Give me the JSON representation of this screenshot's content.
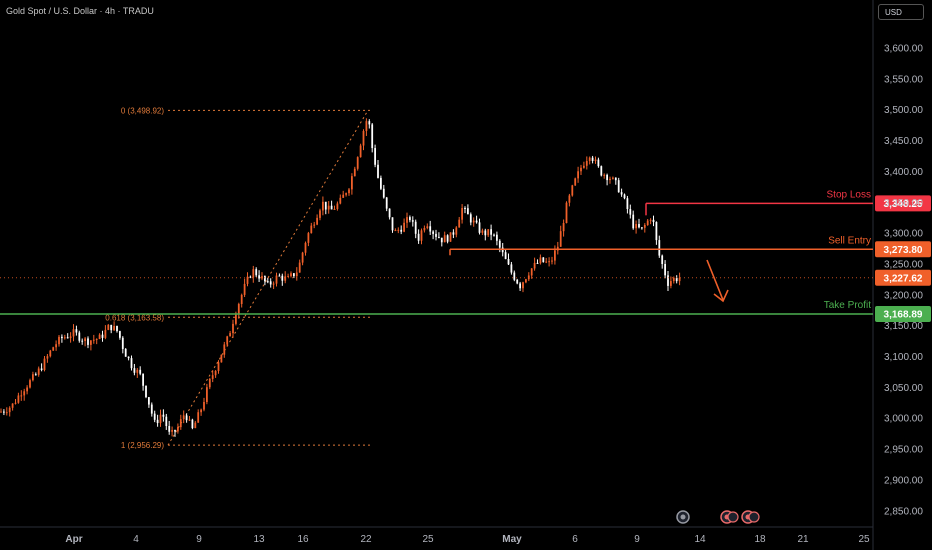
{
  "header": {
    "symbol_title": "Gold Spot / U.S. Dollar · 4h · TRADU",
    "currency": "USD"
  },
  "chart_data": {
    "type": "candlestick",
    "title": "Gold Spot / U.S. Dollar · 4h · TRADU",
    "y_ticks": [
      "3,600.00",
      "3,550.00",
      "3,500.00",
      "3,450.00",
      "3,400.00",
      "3,350.00",
      "3,300.00",
      "3,250.00",
      "3,200.00",
      "3,150.00",
      "3,100.00",
      "3,050.00",
      "3,000.00",
      "2,950.00",
      "2,900.00",
      "2,850.00"
    ],
    "y_tick_values": [
      3600,
      3550,
      3500,
      3450,
      3400,
      3350,
      3300,
      3250,
      3200,
      3150,
      3100,
      3050,
      3000,
      2950,
      2900,
      2850
    ],
    "ylim": [
      2830,
      3650
    ],
    "x_ticks": [
      "Apr",
      "4",
      "9",
      "13",
      "16",
      "22",
      "25",
      "May",
      "6",
      "9",
      "14",
      "18",
      "21",
      "25"
    ],
    "x_tick_positions": [
      74,
      136,
      199,
      259,
      303,
      366,
      428,
      512,
      575,
      637,
      700,
      760,
      803,
      864
    ],
    "price_anchors": [
      [
        0,
        3010
      ],
      [
        12,
        3020
      ],
      [
        22,
        3045
      ],
      [
        36,
        3070
      ],
      [
        46,
        3095
      ],
      [
        54,
        3118
      ],
      [
        62,
        3130
      ],
      [
        74,
        3138
      ],
      [
        86,
        3125
      ],
      [
        100,
        3130
      ],
      [
        110,
        3150
      ],
      [
        118,
        3140
      ],
      [
        124,
        3110
      ],
      [
        132,
        3085
      ],
      [
        140,
        3070
      ],
      [
        148,
        3030
      ],
      [
        155,
        2990
      ],
      [
        162,
        3010
      ],
      [
        170,
        2970
      ],
      [
        178,
        2985
      ],
      [
        185,
        3010
      ],
      [
        192,
        2980
      ],
      [
        200,
        3010
      ],
      [
        210,
        3060
      ],
      [
        220,
        3100
      ],
      [
        228,
        3130
      ],
      [
        236,
        3175
      ],
      [
        244,
        3210
      ],
      [
        252,
        3240
      ],
      [
        260,
        3230
      ],
      [
        268,
        3215
      ],
      [
        278,
        3230
      ],
      [
        288,
        3225
      ],
      [
        298,
        3240
      ],
      [
        306,
        3290
      ],
      [
        314,
        3320
      ],
      [
        322,
        3350
      ],
      [
        330,
        3335
      ],
      [
        340,
        3350
      ],
      [
        350,
        3380
      ],
      [
        358,
        3430
      ],
      [
        364,
        3470
      ],
      [
        368,
        3490
      ],
      [
        372,
        3440
      ],
      [
        378,
        3390
      ],
      [
        386,
        3340
      ],
      [
        394,
        3300
      ],
      [
        402,
        3310
      ],
      [
        410,
        3325
      ],
      [
        418,
        3290
      ],
      [
        426,
        3320
      ],
      [
        434,
        3300
      ],
      [
        442,
        3290
      ],
      [
        452,
        3295
      ],
      [
        462,
        3340
      ],
      [
        472,
        3320
      ],
      [
        482,
        3300
      ],
      [
        492,
        3300
      ],
      [
        500,
        3275
      ],
      [
        510,
        3240
      ],
      [
        520,
        3215
      ],
      [
        530,
        3240
      ],
      [
        540,
        3255
      ],
      [
        550,
        3250
      ],
      [
        558,
        3280
      ],
      [
        566,
        3340
      ],
      [
        574,
        3380
      ],
      [
        582,
        3410
      ],
      [
        590,
        3430
      ],
      [
        600,
        3400
      ],
      [
        610,
        3390
      ],
      [
        618,
        3375
      ],
      [
        626,
        3345
      ],
      [
        634,
        3310
      ],
      [
        642,
        3305
      ],
      [
        652,
        3330
      ],
      [
        658,
        3270
      ],
      [
        664,
        3240
      ],
      [
        668,
        3220
      ],
      [
        672,
        3225
      ],
      [
        680,
        3228
      ]
    ],
    "fibonacci": [
      {
        "label": "0 (3,498.92)",
        "value": 3498.92
      },
      {
        "label": "0.618 (3,163.58)",
        "value": 3163.58
      },
      {
        "label": "1 (2,956.29)",
        "value": 2956.29
      }
    ],
    "levels": [
      {
        "name": "Stop Loss",
        "value": 3348.25,
        "tag": "3,348.25",
        "color": "#f23645"
      },
      {
        "name": "Sell Entry",
        "value": 3273.8,
        "tag": "3,273.80",
        "color": "#f0602a"
      },
      {
        "name": "Take Profit",
        "value": 3168.89,
        "tag": "3,168.89",
        "color": "#4caf50"
      }
    ],
    "current_price": {
      "value": 3227.62,
      "tag": "3,227.62",
      "color": "#f0602a"
    },
    "arrow_direction": "down",
    "colors": {
      "up": "#f0602a",
      "down": "#ffffff",
      "fib": "#e07a3a"
    }
  }
}
